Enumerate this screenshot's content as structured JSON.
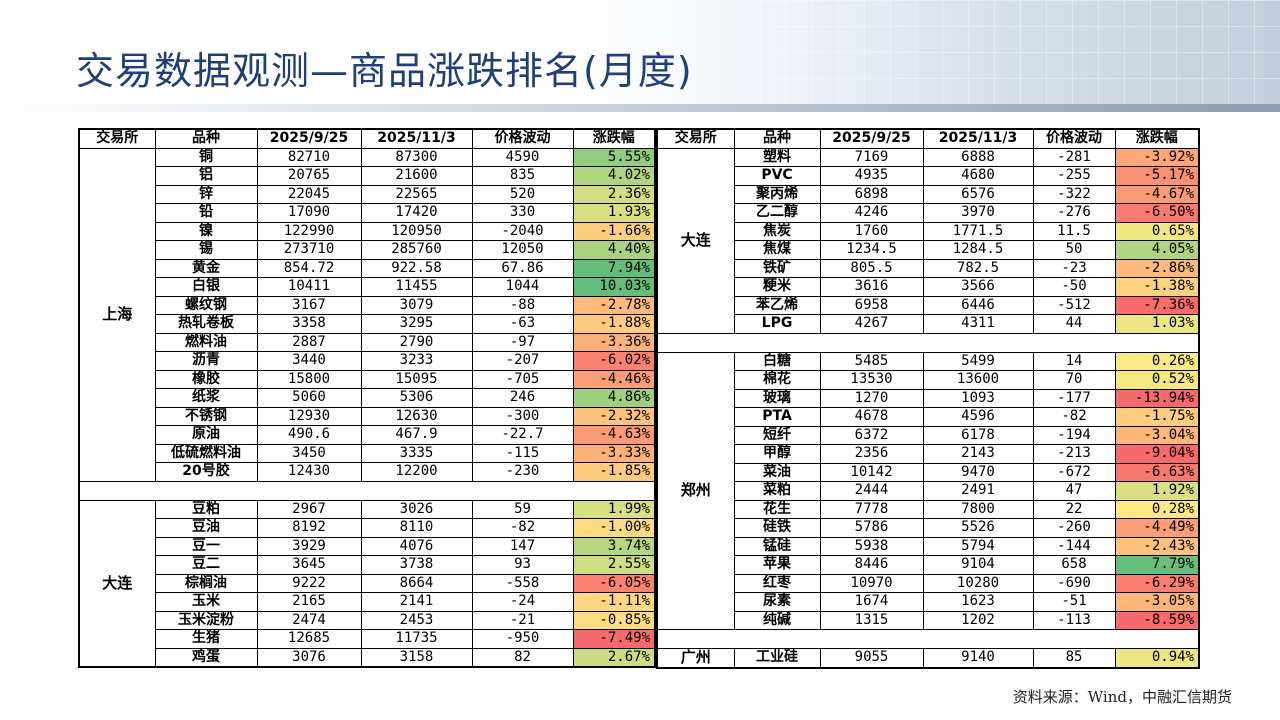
{
  "title": "交易数据观测—商品涨跌排名(月度)",
  "source": "资料来源：Wind，中融汇信期货",
  "headers": [
    "交易所",
    "品种",
    "2025/9/25",
    "2025/11/3",
    "价格波动",
    "涨跌幅"
  ],
  "colors": {
    "title": "#1f3f7a",
    "pct_scale_negative": "#f8696b",
    "pct_scale_mid": "#ffeb84",
    "pct_scale_positive": "#63be7b"
  },
  "left_groups": [
    {
      "exchange": "上海",
      "rows": [
        [
          "铜",
          "82710",
          "87300",
          "4590",
          "5.55%"
        ],
        [
          "铝",
          "20765",
          "21600",
          "835",
          "4.02%"
        ],
        [
          "锌",
          "22045",
          "22565",
          "520",
          "2.36%"
        ],
        [
          "铅",
          "17090",
          "17420",
          "330",
          "1.93%"
        ],
        [
          "镍",
          "122990",
          "120950",
          "-2040",
          "-1.66%"
        ],
        [
          "锡",
          "273710",
          "285760",
          "12050",
          "4.40%"
        ],
        [
          "黄金",
          "854.72",
          "922.58",
          "67.86",
          "7.94%"
        ],
        [
          "白银",
          "10411",
          "11455",
          "1044",
          "10.03%"
        ],
        [
          "螺纹钢",
          "3167",
          "3079",
          "-88",
          "-2.78%"
        ],
        [
          "热轧卷板",
          "3358",
          "3295",
          "-63",
          "-1.88%"
        ],
        [
          "燃料油",
          "2887",
          "2790",
          "-97",
          "-3.36%"
        ],
        [
          "沥青",
          "3440",
          "3233",
          "-207",
          "-6.02%"
        ],
        [
          "橡胶",
          "15800",
          "15095",
          "-705",
          "-4.46%"
        ],
        [
          "纸浆",
          "5060",
          "5306",
          "246",
          "4.86%"
        ],
        [
          "不锈钢",
          "12930",
          "12630",
          "-300",
          "-2.32%"
        ],
        [
          "原油",
          "490.6",
          "467.9",
          "-22.7",
          "-4.63%"
        ],
        [
          "低硫燃料油",
          "3450",
          "3335",
          "-115",
          "-3.33%"
        ],
        [
          "20号胶",
          "12430",
          "12200",
          "-230",
          "-1.85%"
        ]
      ]
    },
    {
      "gap": true
    },
    {
      "exchange": "大连",
      "rows": [
        [
          "豆粕",
          "2967",
          "3026",
          "59",
          "1.99%"
        ],
        [
          "豆油",
          "8192",
          "8110",
          "-82",
          "-1.00%"
        ],
        [
          "豆一",
          "3929",
          "4076",
          "147",
          "3.74%"
        ],
        [
          "豆二",
          "3645",
          "3738",
          "93",
          "2.55%"
        ],
        [
          "棕榈油",
          "9222",
          "8664",
          "-558",
          "-6.05%"
        ],
        [
          "玉米",
          "2165",
          "2141",
          "-24",
          "-1.11%"
        ],
        [
          "玉米淀粉",
          "2474",
          "2453",
          "-21",
          "-0.85%"
        ],
        [
          "生猪",
          "12685",
          "11735",
          "-950",
          "-7.49%"
        ],
        [
          "鸡蛋",
          "3076",
          "3158",
          "82",
          "2.67%"
        ]
      ]
    }
  ],
  "right_groups": [
    {
      "exchange": "大连",
      "rows": [
        [
          "塑料",
          "7169",
          "6888",
          "-281",
          "-3.92%"
        ],
        [
          "PVC",
          "4935",
          "4680",
          "-255",
          "-5.17%"
        ],
        [
          "聚丙烯",
          "6898",
          "6576",
          "-322",
          "-4.67%"
        ],
        [
          "乙二醇",
          "4246",
          "3970",
          "-276",
          "-6.50%"
        ],
        [
          "焦炭",
          "1760",
          "1771.5",
          "11.5",
          "0.65%"
        ],
        [
          "焦煤",
          "1234.5",
          "1284.5",
          "50",
          "4.05%"
        ],
        [
          "铁矿",
          "805.5",
          "782.5",
          "-23",
          "-2.86%"
        ],
        [
          "粳米",
          "3616",
          "3566",
          "-50",
          "-1.38%"
        ],
        [
          "苯乙烯",
          "6958",
          "6446",
          "-512",
          "-7.36%"
        ],
        [
          "LPG",
          "4267",
          "4311",
          "44",
          "1.03%"
        ]
      ]
    },
    {
      "gap": true
    },
    {
      "exchange": "郑州",
      "rows": [
        [
          "白糖",
          "5485",
          "5499",
          "14",
          "0.26%"
        ],
        [
          "棉花",
          "13530",
          "13600",
          "70",
          "0.52%"
        ],
        [
          "玻璃",
          "1270",
          "1093",
          "-177",
          "-13.94%"
        ],
        [
          "PTA",
          "4678",
          "4596",
          "-82",
          "-1.75%"
        ],
        [
          "短纤",
          "6372",
          "6178",
          "-194",
          "-3.04%"
        ],
        [
          "甲醇",
          "2356",
          "2143",
          "-213",
          "-9.04%"
        ],
        [
          "菜油",
          "10142",
          "9470",
          "-672",
          "-6.63%"
        ],
        [
          "菜粕",
          "2444",
          "2491",
          "47",
          "1.92%"
        ],
        [
          "花生",
          "7778",
          "7800",
          "22",
          "0.28%"
        ],
        [
          "硅铁",
          "5786",
          "5526",
          "-260",
          "-4.49%"
        ],
        [
          "锰硅",
          "5938",
          "5794",
          "-144",
          "-2.43%"
        ],
        [
          "苹果",
          "8446",
          "9104",
          "658",
          "7.79%"
        ],
        [
          "红枣",
          "10970",
          "10280",
          "-690",
          "-6.29%"
        ],
        [
          "尿素",
          "1674",
          "1623",
          "-51",
          "-3.05%"
        ],
        [
          "纯碱",
          "1315",
          "1202",
          "-113",
          "-8.59%"
        ]
      ]
    },
    {
      "gap": true
    },
    {
      "exchange": "广州",
      "plain": true,
      "rows": [
        [
          "工业硅",
          "9055",
          "9140",
          "85",
          "0.94%"
        ]
      ]
    }
  ]
}
